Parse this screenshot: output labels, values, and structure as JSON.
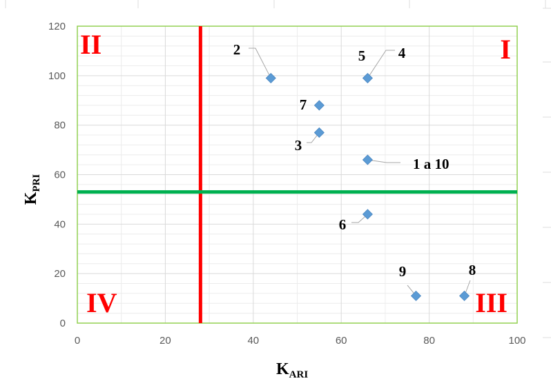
{
  "chart_data": {
    "type": "scatter",
    "xlabel": {
      "main": "K",
      "sub": "ARI"
    },
    "ylabel": {
      "main": "K",
      "sub": "PRI"
    },
    "xlim": [
      0,
      100
    ],
    "ylim": [
      0,
      120
    ],
    "x_ticks": [
      "0",
      "20",
      "40",
      "60",
      "80",
      "100"
    ],
    "y_ticks": [
      "0",
      "20",
      "40",
      "60",
      "80",
      "100",
      "120"
    ],
    "grid": true,
    "series": [
      {
        "points": [
          {
            "x": 44,
            "y": 99,
            "label": "2"
          },
          {
            "x": 66,
            "y": 99,
            "label": "4"
          },
          {
            "x": 55,
            "y": 88,
            "label": "7"
          },
          {
            "x": 55,
            "y": 77,
            "label": "3"
          },
          {
            "x": 66,
            "y": 66,
            "label": "1 a 10"
          },
          {
            "x": 66,
            "y": 44,
            "label": "6"
          },
          {
            "x": 77,
            "y": 11,
            "label": "9"
          },
          {
            "x": 88,
            "y": 11,
            "label": "8"
          }
        ]
      }
    ],
    "extra_labels": [
      {
        "text": "5"
      }
    ],
    "vertical_line": {
      "x": 28,
      "color": "#ff0000"
    },
    "horizontal_line": {
      "y": 53,
      "color": "#00b050"
    },
    "quadrants": [
      {
        "text": "II",
        "position": "top-left"
      },
      {
        "text": "I",
        "position": "top-right"
      },
      {
        "text": "IV",
        "position": "bottom-left"
      },
      {
        "text": "III",
        "position": "bottom-right"
      }
    ],
    "colors": {
      "marker": "#5b9bd5",
      "quadrant_text": "#ff0000",
      "grid_major": "#d9d9d9",
      "grid_minor": "#ececec",
      "plot_border": "#92d050",
      "leader": "#a6a6a6"
    }
  }
}
